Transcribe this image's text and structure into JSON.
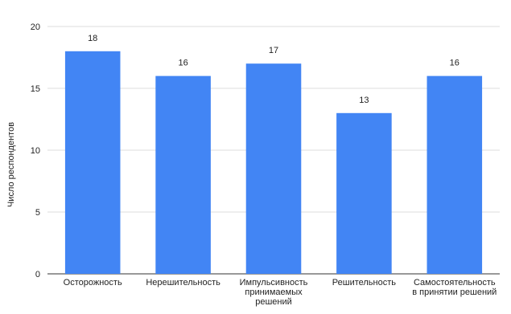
{
  "chart_data": {
    "type": "bar",
    "categories": [
      [
        "Осторожность"
      ],
      [
        "Нерешительность"
      ],
      [
        "Импульсивность",
        "принимаемых",
        "решений"
      ],
      [
        "Решительность"
      ],
      [
        "Самостоятельность",
        "в принятии решений"
      ]
    ],
    "values": [
      18,
      16,
      17,
      13,
      16
    ],
    "ylabel": "Число респондентов",
    "xlabel": "",
    "ylim": [
      0,
      20
    ],
    "yticks": [
      0,
      5,
      10,
      15,
      20
    ],
    "grid": true,
    "bar_color": "#4285f4",
    "data_labels": true
  }
}
